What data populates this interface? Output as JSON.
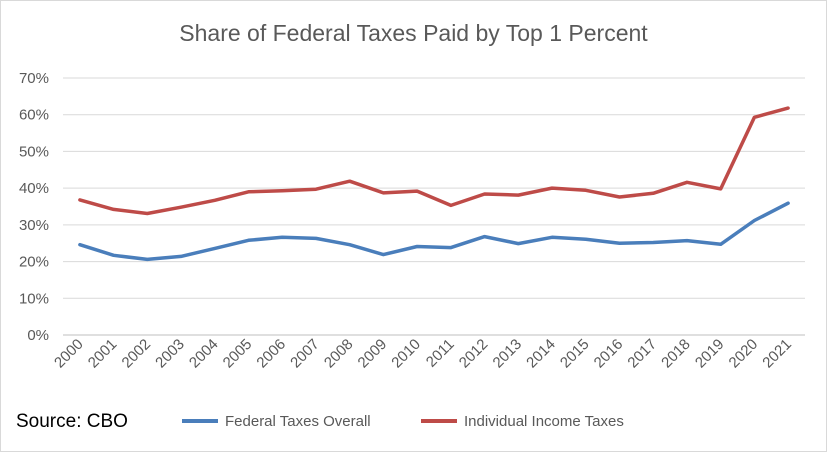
{
  "chart_data": {
    "type": "line",
    "title": "Share of Federal Taxes Paid by Top 1 Percent",
    "source": "Source: CBO",
    "categories": [
      "2000",
      "2001",
      "2002",
      "2003",
      "2004",
      "2005",
      "2006",
      "2007",
      "2008",
      "2009",
      "2010",
      "2011",
      "2012",
      "2013",
      "2014",
      "2015",
      "2016",
      "2017",
      "2018",
      "2019",
      "2020",
      "2021"
    ],
    "series": [
      {
        "name": "Federal Taxes Overall",
        "color": "#4a7ebb",
        "values": [
          24.6,
          21.7,
          20.6,
          21.4,
          23.6,
          25.8,
          26.6,
          26.3,
          24.6,
          21.9,
          24.1,
          23.8,
          26.8,
          24.9,
          26.6,
          26.1,
          25.0,
          25.2,
          25.7,
          24.7,
          31.2,
          35.9
        ]
      },
      {
        "name": "Individual Income Taxes",
        "color": "#be4b48",
        "values": [
          36.8,
          34.2,
          33.1,
          34.8,
          36.7,
          39.0,
          39.3,
          39.7,
          41.9,
          38.7,
          39.2,
          35.3,
          38.4,
          38.1,
          40.0,
          39.4,
          37.6,
          38.6,
          41.6,
          39.8,
          59.3,
          61.8
        ]
      }
    ],
    "yticks": [
      "0%",
      "10%",
      "20%",
      "30%",
      "40%",
      "50%",
      "60%",
      "70%"
    ],
    "ylim": [
      0,
      70
    ],
    "grid": true,
    "legend": "bottom"
  }
}
